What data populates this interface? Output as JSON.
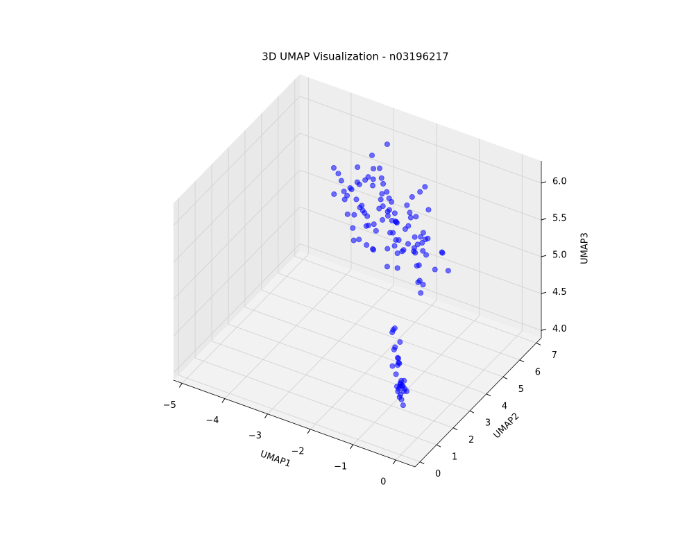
{
  "chart_data": {
    "type": "scatter3d",
    "title": "3D UMAP Visualization - n03196217",
    "xlabel": "UMAP1",
    "ylabel": "UMAP2",
    "zlabel": "UMAP3",
    "color": "#0000ff",
    "grid": true,
    "xlim": [
      -5.2,
      0.45
    ],
    "ylim": [
      -0.3,
      7.3
    ],
    "zlim": [
      3.9,
      6.3
    ],
    "xticks": [
      {
        "value": -5,
        "label": "−5"
      },
      {
        "value": -4,
        "label": "−4"
      },
      {
        "value": -3,
        "label": "−3"
      },
      {
        "value": -2,
        "label": "−2"
      },
      {
        "value": -1,
        "label": "−1"
      },
      0
    ],
    "yticks": [
      0,
      1,
      2,
      3,
      4,
      5,
      6,
      7
    ],
    "zticks": [
      {
        "value": 4,
        "label": "4.0"
      },
      4.5,
      {
        "value": 5,
        "label": "5.0"
      },
      5.5,
      {
        "value": 6,
        "label": "6.0"
      }
    ],
    "x": [
      -3.8,
      -3.5,
      -3.2,
      -2.9,
      -2.6,
      -2.3,
      -2.0,
      -1.7,
      -1.4,
      -1.1,
      -3.6,
      -3.3,
      -3.0,
      -2.7,
      -2.4,
      -2.1,
      -1.8,
      -1.5,
      -1.2,
      -3.9,
      -3.4,
      -3.1,
      -2.8,
      -2.5,
      -2.2,
      -1.9,
      -1.6,
      -1.3,
      -3.7,
      -3.0,
      -2.6,
      -2.2,
      -1.8,
      -1.4,
      -3.5,
      -3.1,
      -2.7,
      -2.3,
      -1.9,
      -1.5,
      -3.3,
      -2.9,
      -2.5,
      -2.1,
      -1.7,
      -3.6,
      -3.2,
      -2.8,
      -2.4,
      -2.0,
      -3.0,
      -2.7,
      -2.4,
      -2.1,
      -1.8,
      -1.5,
      -3.4,
      -2.9,
      -2.5,
      -2.2,
      -3.7,
      -3.3,
      -2.9,
      -2.5,
      -2.1,
      -1.7,
      -1.3,
      -3.1,
      -2.7,
      -2.3,
      -3.2,
      -2.8,
      -2.4,
      -2.0,
      -1.6,
      -3.5,
      -3.0,
      -2.6,
      -2.2,
      -1.8,
      -2.9,
      -2.6,
      -2.3,
      -2.0,
      -3.8,
      -3.4,
      -3.0,
      -2.7,
      -2.4,
      -2.1,
      -3.1,
      -2.8,
      -2.5,
      -2.2,
      -1.9,
      -1.6,
      -3.3,
      -2.9,
      -2.6,
      -2.3,
      -1.4,
      -1.2,
      -1.0,
      -0.8,
      -1.3,
      -1.1,
      -0.9,
      -0.7,
      -1.5,
      -1.2,
      -1.0,
      -0.8,
      -1.4,
      -1.1,
      -0.9,
      -0.6,
      -1.3,
      -1.0,
      -0.8,
      -1.2,
      -1.5,
      -1.1,
      -0.9,
      -0.7,
      -1.3,
      -1.0,
      -0.8,
      -1.2,
      -0.9,
      -1.6
    ],
    "y": [
      6.2,
      5.8,
      6.5,
      5.4,
      6.0,
      5.1,
      6.6,
      5.7,
      4.8,
      5.3,
      5.5,
      6.8,
      5.2,
      6.1,
      5.8,
      4.6,
      6.3,
      5.0,
      5.6,
      6.0,
      6.4,
      5.3,
      5.9,
      6.7,
      5.1,
      5.7,
      4.9,
      6.2,
      5.5,
      6.9,
      5.0,
      6.2,
      5.6,
      4.7,
      6.4,
      5.8,
      5.3,
      6.6,
      5.9,
      5.2,
      6.0,
      5.5,
      6.8,
      5.2,
      5.9,
      6.3,
      5.0,
      6.1,
      5.4,
      6.5,
      5.7,
      6.3,
      5.1,
      6.0,
      5.5,
      4.9,
      6.6,
      5.8,
      6.2,
      5.3,
      6.1,
      5.6,
      6.4,
      5.9,
      5.2,
      6.0,
      5.4,
      6.7,
      5.0,
      5.8,
      5.4,
      6.0,
      5.7,
      6.3,
      5.6,
      6.2,
      5.1,
      5.9,
      6.5,
      4.8,
      6.3,
      5.2,
      6.0,
      5.6,
      6.4,
      5.7,
      6.1,
      5.3,
      5.9,
      6.6,
      5.9,
      6.5,
      5.3,
      6.1,
      5.8,
      5.4,
      6.2,
      5.0,
      6.4,
      5.6,
      3.2,
      2.8,
      2.4,
      2.0,
      3.0,
      2.6,
      2.2,
      1.8,
      3.4,
      2.9,
      2.5,
      2.1,
      3.1,
      2.7,
      2.3,
      1.9,
      3.3,
      2.6,
      2.2,
      3.0,
      3.5,
      2.8,
      2.4,
      2.0,
      3.2,
      2.7,
      2.3,
      2.9,
      2.5,
      3.6
    ],
    "z": [
      5.4,
      5.1,
      5.8,
      4.9,
      5.3,
      4.8,
      5.6,
      5.0,
      4.7,
      5.2,
      5.7,
      5.3,
      5.0,
      5.5,
      4.9,
      5.2,
      5.4,
      4.8,
      5.1,
      5.6,
      5.1,
      5.5,
      5.3,
      4.9,
      5.7,
      5.0,
      5.2,
      4.7,
      5.4,
      5.9,
      5.0,
      5.3,
      4.8,
      5.1,
      5.6,
      5.2,
      4.9,
      5.4,
      5.0,
      4.7,
      5.5,
      5.8,
      5.2,
      5.0,
      4.9,
      5.3,
      5.6,
      5.1,
      5.4,
      5.0,
      5.2,
      4.9,
      5.6,
      5.3,
      5.0,
      4.8,
      5.4,
      5.7,
      5.1,
      5.5,
      5.3,
      5.0,
      5.5,
      5.2,
      4.8,
      5.1,
      4.9,
      5.6,
      5.3,
      5.0,
      4.9,
      5.4,
      5.1,
      5.6,
      5.2,
      5.0,
      5.8,
      5.3,
      4.9,
      5.2,
      5.6,
      5.2,
      4.8,
      5.3,
      5.1,
      5.5,
      5.0,
      6.0,
      5.2,
      4.9,
      5.0,
      5.3,
      5.7,
      4.9,
      5.4,
      5.2,
      5.1,
      5.5,
      4.8,
      5.3,
      4.3,
      4.1,
      4.0,
      4.2,
      4.4,
      4.0,
      4.1,
      4.3,
      4.5,
      4.2,
      3.9,
      4.0,
      4.1,
      4.3,
      4.0,
      4.2,
      4.4,
      4.1,
      3.9,
      4.2,
      4.5,
      4.0,
      4.1,
      4.3,
      4.2,
      4.0,
      4.1,
      4.3,
      4.0,
      4.4
    ]
  }
}
